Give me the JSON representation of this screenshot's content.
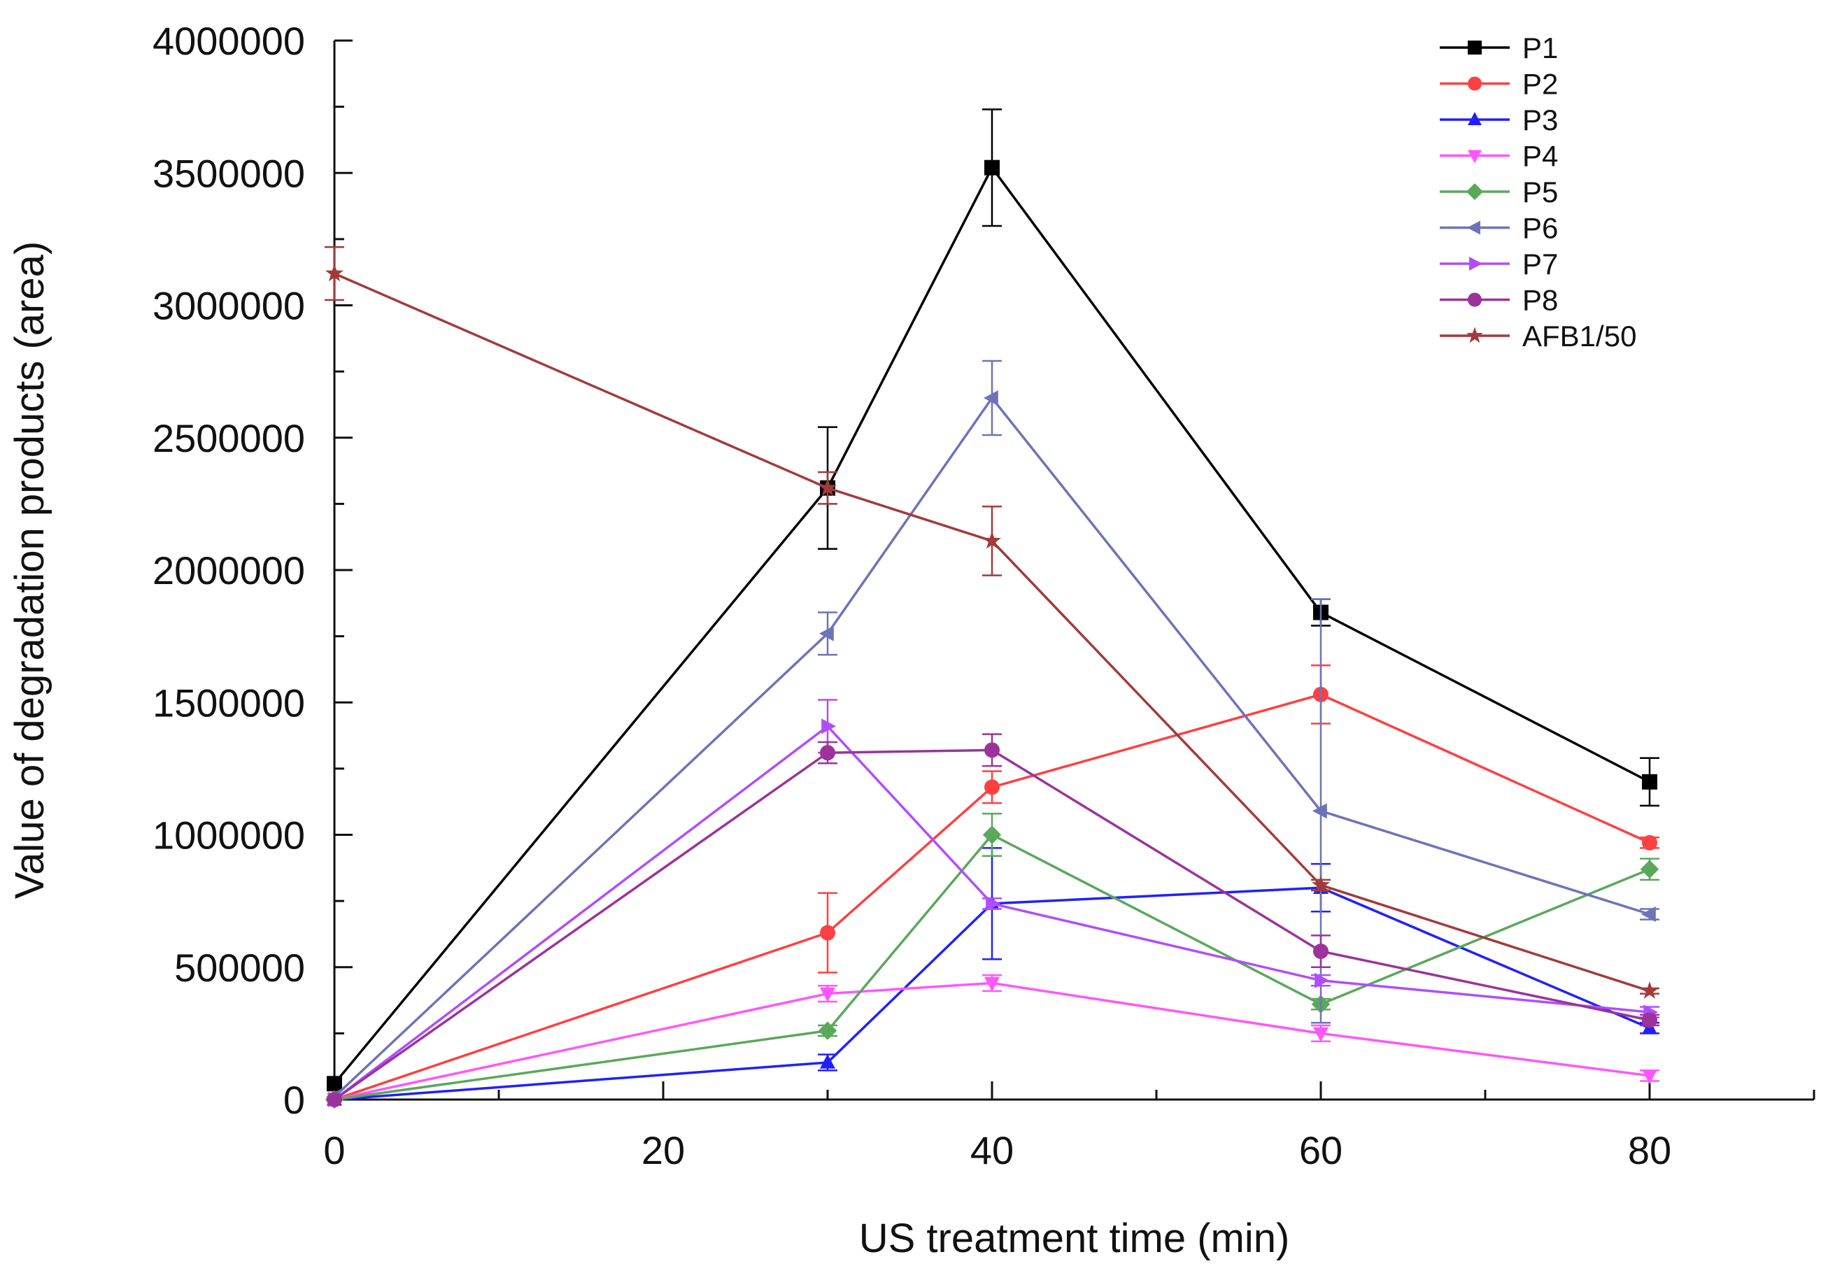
{
  "chart_data": {
    "type": "line",
    "title": "",
    "xlabel": "US treatment time (min)",
    "ylabel": "Value of degradation products (area)",
    "xlim": [
      0,
      90
    ],
    "ylim": [
      0,
      4000000
    ],
    "x_ticks": [
      {
        "value": 0,
        "label": "0"
      },
      {
        "value": 20,
        "label": "20"
      },
      {
        "value": 40,
        "label": "40"
      },
      {
        "value": 60,
        "label": "60"
      },
      {
        "value": 80,
        "label": "80"
      }
    ],
    "y_ticks": [
      {
        "value": 0,
        "label": "0"
      },
      {
        "value": 500000,
        "label": "500000"
      },
      {
        "value": 1000000,
        "label": "1000000"
      },
      {
        "value": 1500000,
        "label": "1500000"
      },
      {
        "value": 2000000,
        "label": "2000000"
      },
      {
        "value": 2500000,
        "label": "2500000"
      },
      {
        "value": 3000000,
        "label": "3000000"
      },
      {
        "value": 3500000,
        "label": "3500000"
      },
      {
        "value": 4000000,
        "label": "4000000"
      }
    ],
    "grid": false,
    "legend_position": "top-right",
    "series": [
      {
        "name": "P1",
        "color": "#000000",
        "marker": "square",
        "x": [
          0,
          30,
          40,
          60,
          80
        ],
        "y": [
          60000,
          2310000,
          3520000,
          1840000,
          1200000
        ],
        "err": [
          0,
          230000,
          220000,
          50000,
          90000
        ]
      },
      {
        "name": "P2",
        "color": "#ff4040",
        "marker": "circle",
        "x": [
          0,
          30,
          40,
          60,
          80
        ],
        "y": [
          0,
          630000,
          1180000,
          1530000,
          970000
        ],
        "err": [
          0,
          150000,
          60000,
          110000,
          20000
        ]
      },
      {
        "name": "P3",
        "color": "#2020ff",
        "marker": "triangle-up",
        "x": [
          0,
          30,
          40,
          60,
          80
        ],
        "y": [
          0,
          140000,
          740000,
          800000,
          270000
        ],
        "err": [
          0,
          30000,
          210000,
          90000,
          20000
        ]
      },
      {
        "name": "P4",
        "color": "#ff55ff",
        "marker": "triangle-down",
        "x": [
          0,
          30,
          40,
          60,
          80
        ],
        "y": [
          0,
          400000,
          440000,
          250000,
          90000
        ],
        "err": [
          0,
          30000,
          30000,
          30000,
          20000
        ]
      },
      {
        "name": "P5",
        "color": "#5aa85a",
        "marker": "diamond",
        "x": [
          0,
          30,
          40,
          60,
          80
        ],
        "y": [
          0,
          260000,
          1000000,
          360000,
          870000
        ],
        "err": [
          0,
          20000,
          80000,
          20000,
          40000
        ]
      },
      {
        "name": "P6",
        "color": "#6e73b8",
        "marker": "triangle-left",
        "x": [
          0,
          30,
          40,
          60,
          80
        ],
        "y": [
          10000,
          1760000,
          2650000,
          1090000,
          700000
        ],
        "err": [
          0,
          80000,
          140000,
          800000,
          20000
        ]
      },
      {
        "name": "P7",
        "color": "#b04dff",
        "marker": "triangle-right",
        "x": [
          0,
          30,
          40,
          60,
          80
        ],
        "y": [
          0,
          1410000,
          740000,
          450000,
          330000
        ],
        "err": [
          0,
          100000,
          20000,
          20000,
          20000
        ]
      },
      {
        "name": "P8",
        "color": "#9b339b",
        "marker": "circle",
        "x": [
          0,
          30,
          40,
          60,
          80
        ],
        "y": [
          0,
          1310000,
          1320000,
          560000,
          300000
        ],
        "err": [
          0,
          40000,
          60000,
          60000,
          20000
        ]
      },
      {
        "name": "AFB1/50",
        "color": "#a33a3a",
        "marker": "star",
        "x": [
          0,
          30,
          40,
          60,
          80
        ],
        "y": [
          3120000,
          2310000,
          2110000,
          810000,
          410000
        ],
        "err": [
          100000,
          60000,
          130000,
          20000,
          10000
        ]
      }
    ]
  }
}
